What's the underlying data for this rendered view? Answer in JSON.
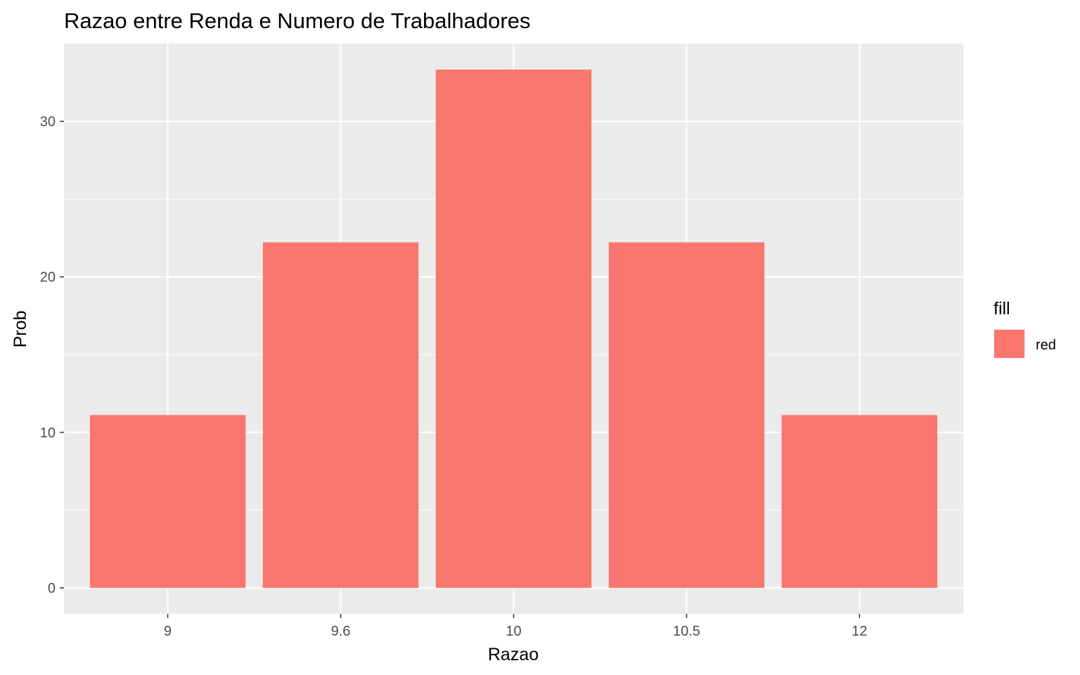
{
  "chart_data": {
    "type": "bar",
    "title": "Razao entre Renda e Numero de Trabalhadores",
    "xlabel": "Razao",
    "ylabel": "Prob",
    "categories": [
      "9",
      "9.6",
      "10",
      "10.5",
      "12"
    ],
    "values": [
      11.11,
      22.22,
      33.33,
      22.22,
      11.11
    ],
    "ylim": [
      -1.67,
      35.0
    ],
    "y_ticks": [
      "0",
      "10",
      "20",
      "30"
    ],
    "grid": true,
    "legend": {
      "title": "fill",
      "position": "right",
      "items": [
        {
          "label": "red",
          "color": "#F8766D"
        }
      ]
    },
    "colors": {
      "bar": "#F8766D",
      "panel": "#EBEBEB",
      "grid": "#FFFFFF"
    }
  }
}
